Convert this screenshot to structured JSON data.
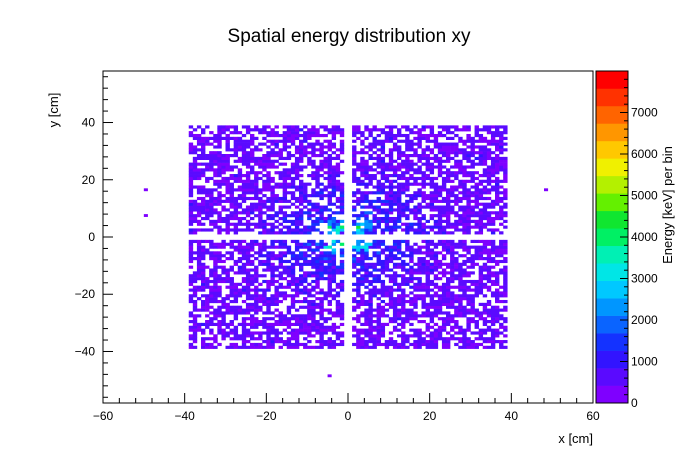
{
  "chart_data": {
    "type": "heatmap",
    "title": "Spatial energy distribution xy",
    "xlabel": "x [cm]",
    "ylabel": "y [cm]",
    "zlabel": "Energy [keV] per bin",
    "xlim": [
      -60,
      60
    ],
    "ylim": [
      -58,
      58
    ],
    "zlim": [
      0,
      8000
    ],
    "x_ticks": [
      -60,
      -40,
      -20,
      0,
      20,
      40,
      60
    ],
    "x_tick_labels": [
      "−60",
      "−40",
      "−20",
      "0",
      "20",
      "40",
      "60"
    ],
    "y_ticks": [
      -40,
      -20,
      0,
      20,
      40
    ],
    "y_tick_labels": [
      "−40",
      "−20",
      "0",
      "20",
      "40"
    ],
    "z_ticks": [
      0,
      1000,
      2000,
      3000,
      4000,
      5000,
      6000,
      7000
    ],
    "z_tick_labels": [
      "0",
      "1000",
      "2000",
      "3000",
      "4000",
      "5000",
      "6000",
      "7000"
    ],
    "bin_width_cm": 1.0,
    "filled_region": {
      "x": [
        -39,
        39
      ],
      "y": [
        -39,
        39
      ]
    },
    "gap_lines": {
      "x": [
        0
      ],
      "y": [
        0
      ]
    },
    "hot_spots": [
      {
        "x": -3,
        "y": 3,
        "value": 3500
      },
      {
        "x": 3,
        "y": 3,
        "value": 3300
      },
      {
        "x": -3,
        "y": -3,
        "value": 3200
      },
      {
        "x": 3,
        "y": -3,
        "value": 3000
      }
    ],
    "outliers": [
      {
        "x": -49.5,
        "y": 16.5,
        "value": 300
      },
      {
        "x": -49.5,
        "y": 7.5,
        "value": 300
      },
      {
        "x": 48.5,
        "y": 16.5,
        "value": 300
      },
      {
        "x": -4.5,
        "y": -48.5,
        "value": 300
      }
    ],
    "palette": [
      "#7f00ff",
      "#5a0aff",
      "#3214ff",
      "#1432ff",
      "#0a64ff",
      "#0096ff",
      "#00c8ff",
      "#00e6e6",
      "#00f0b4",
      "#00f064",
      "#10e630",
      "#64f000",
      "#b4f000",
      "#f0f000",
      "#ffc800",
      "#ff9600",
      "#ff6400",
      "#ff3200",
      "#ff0000"
    ]
  },
  "colors": {
    "frame": "#000000",
    "background": "#ffffff"
  }
}
